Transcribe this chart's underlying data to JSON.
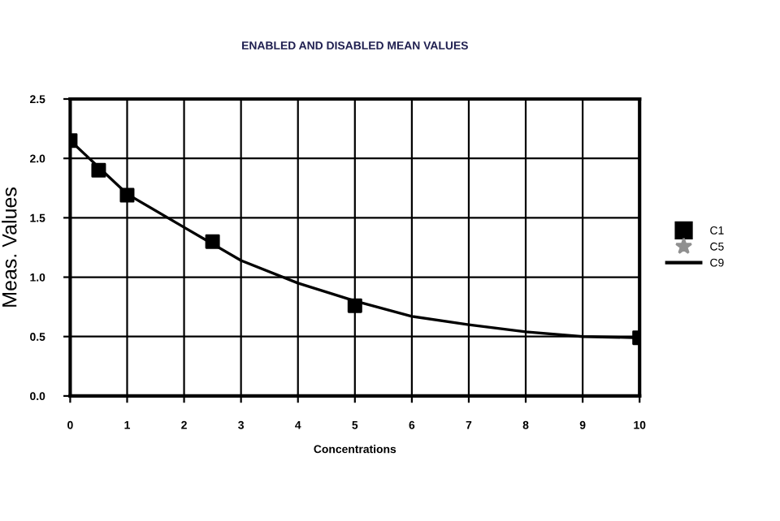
{
  "chart_data": {
    "type": "scatter",
    "title": "ENABLED AND DISABLED MEAN VALUES",
    "xlabel": "Concentrations",
    "ylabel": "Meas. Values",
    "xlim": [
      0,
      10
    ],
    "xticks": [
      0,
      1,
      2,
      3,
      4,
      5,
      6,
      7,
      8,
      9,
      10
    ],
    "ylim": [
      0,
      2.5
    ],
    "yticks": [
      {
        "value": 0,
        "label": "0.0"
      },
      0.5,
      {
        "value": 1,
        "label": "1.0"
      },
      1.5,
      {
        "value": 2,
        "label": "2.0"
      },
      2.5
    ],
    "grid": true,
    "legend": "right",
    "series": [
      {
        "name": "C1",
        "marker": "square",
        "color": "#000000",
        "x": [
          0,
          0.5,
          1,
          2.5,
          5,
          10
        ],
        "values": [
          2.15,
          1.9,
          1.69,
          1.3,
          0.76,
          0.49
        ]
      },
      {
        "name": "C5",
        "type": "scatter",
        "marker": "star",
        "color": "#909090"
      },
      {
        "name": "C9",
        "type": "line",
        "marker": "none",
        "line_style": "solid",
        "color": "#000000",
        "x": [
          0,
          1,
          2,
          3,
          4,
          5,
          6,
          7,
          8,
          9,
          10
        ],
        "values": [
          2.15,
          1.7,
          1.42,
          1.14,
          0.95,
          0.8,
          0.67,
          0.6,
          0.54,
          0.5,
          0.49
        ]
      }
    ]
  }
}
